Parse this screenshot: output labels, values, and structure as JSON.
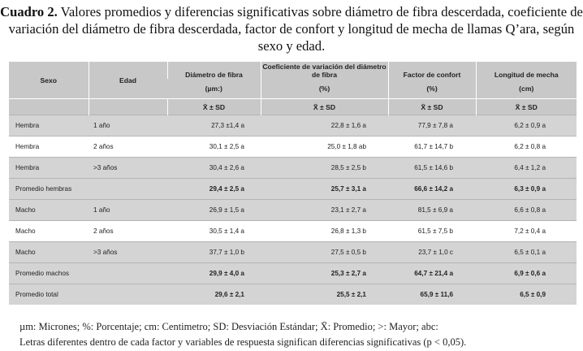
{
  "title": {
    "label": "Cuadro 2.",
    "text": "Valores promedios y diferencias significativas sobre diámetro de fibra descerdada, coeficiente de variación del diámetro de fibra descerdada, factor de confort y longitud de mecha de llamas Q’ara, según sexo y edad."
  },
  "table": {
    "headers": {
      "sexo": "Sexo",
      "edad": "Edad",
      "cols": [
        {
          "name": "Diámetro de fibra",
          "unit": "(µm:)",
          "stat": "X̄ ± SD"
        },
        {
          "name": "Coeficiente de variación del diámetro de fibra",
          "unit": "(%)",
          "stat": "X̄ ± SD"
        },
        {
          "name": "Factor de confort",
          "unit": "(%)",
          "stat": "X̄ ± SD"
        },
        {
          "name": "Longitud de mecha",
          "unit": "(cm)",
          "stat": "X̄ ± SD"
        }
      ]
    },
    "rows": [
      {
        "sexo": "Hembra",
        "edad": "1 año",
        "d": "27,3 ±1,4 a",
        "cv": "22,8 ± 1,6 a",
        "fc": "77,9 ± 7,8 a",
        "lm": "6,2 ± 0,9 a"
      },
      {
        "sexo": "Hembra",
        "edad": "2 años",
        "d": "30,1 ± 2,5 a",
        "cv": "25,0 ± 1,8 ab",
        "fc": "61,7 ± 14,7 b",
        "lm": "6,2 ± 0,8 a"
      },
      {
        "sexo": "Hembra",
        "edad": ">3 años",
        "d": "30,4 ± 2,6 a",
        "cv": "28,5 ± 2,5 b",
        "fc": "61,5 ± 14,6 b",
        "lm": "6,4 ± 1,2 a"
      },
      {
        "sexo": "Promedio hembras",
        "edad": "",
        "d": "29,4 ± 2,5 a",
        "cv": "25,7 ± 3,1 a",
        "fc": "66,6 ± 14,2 a",
        "lm": "6,3 ± 0,9 a"
      },
      {
        "sexo": "Macho",
        "edad": "1 año",
        "d": "26,9 ± 1,5 a",
        "cv": "23,1 ± 2,7 a",
        "fc": "81,5 ± 6,9 a",
        "lm": "6,6 ± 0,8 a"
      },
      {
        "sexo": "Macho",
        "edad": "2 años",
        "d": "30,5 ± 1,4 a",
        "cv": "26,8 ± 1,3 b",
        "fc": "61,5 ± 7,5 b",
        "lm": "7,2 ± 0,4 a"
      },
      {
        "sexo": "Macho",
        "edad": ">3 años",
        "d": "37,7 ± 1,0 b",
        "cv": "27,5 ± 0,5 b",
        "fc": "23,7 ± 1,0 c",
        "lm": "6,5 ± 0,1 a"
      },
      {
        "sexo": "Promedio machos",
        "edad": "",
        "d": "29,9 ± 4,0 a",
        "cv": "25,3 ± 2,7 a",
        "fc": "64,7 ± 21,4 a",
        "lm": "6,9 ± 0,6 a"
      },
      {
        "sexo": "Promedio total",
        "edad": "",
        "d": "29,6 ± 2,1",
        "cv": "25,5 ± 2,1",
        "fc": "65,9 ± 11,6",
        "lm": "6,5 ± 0,9"
      }
    ]
  },
  "footer": {
    "line1": "µm: Micrones; %: Porcentaje; cm: Centimetro; SD: Desviación Estándar; X̄: Promedio; >: Mayor; abc:",
    "line2": "Letras diferentes dentro de cada factor y variables de respuesta significan diferencias significativas (p < 0,05)."
  }
}
